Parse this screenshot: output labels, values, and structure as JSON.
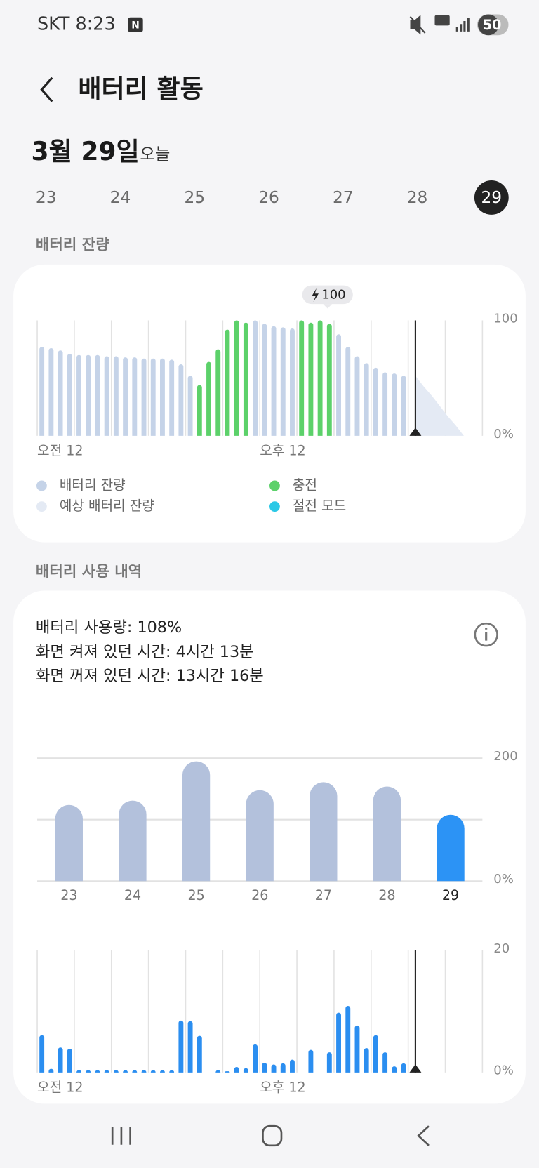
{
  "status_bar": {
    "carrier_time": "SKT 8:23",
    "notification_icon": "N",
    "battery": "50"
  },
  "header": {
    "title": "배터리 활동"
  },
  "date": {
    "label": "3월 29일",
    "relative": "오늘"
  },
  "day_tabs": {
    "days": [
      "23",
      "24",
      "25",
      "26",
      "27",
      "28",
      "29"
    ],
    "selected": "29"
  },
  "sections": [
    "배터리 잔량",
    "배터리 사용 내역"
  ],
  "usage_summary": [
    "배터리 사용량: 108%",
    "화면 켜져 있던 시간: 4시간 13분",
    "화면 꺼져 있던 시간: 13시간 16분"
  ],
  "chart_data": [
    {
      "type": "bar",
      "grid": "x",
      "annotation": "100",
      "categories": [
        "오전 12",
        null,
        null,
        null,
        null,
        null,
        null,
        null,
        null,
        null,
        null,
        null,
        null,
        null,
        null,
        null,
        null,
        null,
        null,
        null,
        null,
        null,
        null,
        null,
        "오후 12",
        null,
        null,
        null,
        null,
        null,
        null,
        null,
        null,
        null,
        null,
        null,
        null,
        null,
        null,
        null,
        null,
        null,
        null,
        null,
        null,
        null,
        null,
        null
      ],
      "series": [
        {
          "name": "배터리 잔량",
          "color": "#c5d3e8",
          "values": [
            77,
            76,
            74,
            71,
            70,
            70,
            70,
            69,
            69,
            68,
            68,
            67,
            67,
            67,
            66,
            62,
            52,
            null,
            null,
            null,
            null,
            null,
            null,
            100,
            97,
            95,
            94,
            93,
            null,
            null,
            null,
            null,
            88,
            77,
            69,
            63,
            59,
            55,
            54,
            52,
            null,
            null,
            null,
            null,
            null,
            null,
            null,
            null
          ]
        },
        {
          "name": "충전",
          "color": "#5cd16a",
          "values": [
            null,
            null,
            null,
            null,
            null,
            null,
            null,
            null,
            null,
            null,
            null,
            null,
            null,
            null,
            null,
            null,
            null,
            44,
            64,
            75,
            92,
            100,
            98,
            null,
            null,
            null,
            null,
            null,
            100,
            98,
            100,
            97,
            null,
            null,
            null,
            null,
            null,
            null,
            null,
            null,
            null,
            null,
            null,
            null,
            null,
            null,
            null,
            null
          ]
        },
        {
          "name": "예상 배터리 잔량",
          "color": "#e4eaf4",
          "type": "area",
          "values": [
            null,
            null,
            null,
            null,
            null,
            null,
            null,
            null,
            null,
            null,
            null,
            null,
            null,
            null,
            null,
            null,
            null,
            null,
            null,
            null,
            null,
            null,
            null,
            null,
            null,
            null,
            null,
            null,
            null,
            null,
            null,
            null,
            null,
            null,
            null,
            null,
            null,
            null,
            null,
            null,
            52,
            43,
            35,
            26,
            17,
            9,
            0,
            null
          ]
        },
        {
          "name": "절전 모드",
          "color": "#2bc8e6",
          "values": [
            null,
            null,
            null,
            null,
            null,
            null,
            null,
            null,
            null,
            null,
            null,
            null,
            null,
            null,
            null,
            null,
            null,
            null,
            null,
            null,
            null,
            null,
            null,
            null,
            null,
            null,
            null,
            null,
            null,
            null,
            null,
            null,
            null,
            null,
            null,
            null,
            null,
            null,
            null,
            null,
            null,
            null,
            null,
            null,
            null,
            null,
            null,
            null
          ]
        }
      ],
      "ylim": [
        0,
        100
      ],
      "yticks": [
        {
          "value": 0,
          "label": "0%"
        },
        100
      ]
    },
    {
      "type": "bar",
      "grid": "y",
      "categories": [
        "23",
        "24",
        "25",
        "26",
        "27",
        "28",
        "29"
      ],
      "values": [
        124,
        131,
        195,
        148,
        161,
        154,
        108
      ],
      "colors": [
        "#b3c1dc",
        "#b3c1dc",
        "#b3c1dc",
        "#b3c1dc",
        "#b3c1dc",
        "#b3c1dc",
        "#2c93f5"
      ],
      "ylim": [
        0,
        200
      ],
      "yticks": [
        {
          "value": 0,
          "label": "0%"
        },
        {
          "value": 100,
          "label": null
        },
        200
      ]
    },
    {
      "type": "bar",
      "grid": "x",
      "color": "#2b8ef0",
      "categories": [
        "오전 12",
        null,
        null,
        null,
        null,
        null,
        null,
        null,
        null,
        null,
        null,
        null,
        null,
        null,
        null,
        null,
        null,
        null,
        null,
        null,
        null,
        null,
        null,
        null,
        "오후 12",
        null,
        null,
        null,
        null,
        null,
        null,
        null,
        null,
        null,
        null,
        null,
        null,
        null,
        null,
        null,
        null,
        null,
        null,
        null,
        null,
        null,
        null,
        null
      ],
      "values": [
        6.1,
        0.6,
        4.1,
        3.9,
        0.4,
        0.4,
        0.4,
        0.4,
        0.4,
        0.4,
        0.4,
        0.4,
        0.4,
        0.4,
        0.4,
        8.5,
        8.4,
        6,
        null,
        0.4,
        0.2,
        0.9,
        0.7,
        4.6,
        1.6,
        1.3,
        1.5,
        2.1,
        null,
        3.7,
        null,
        3.3,
        9.8,
        10.9,
        7.7,
        4,
        6.1,
        3.3,
        1,
        1.5,
        null,
        null,
        null,
        null,
        null,
        null,
        null,
        null
      ],
      "ylim": [
        0,
        20
      ],
      "yticks": [
        {
          "value": 0,
          "label": "0%"
        },
        20
      ]
    }
  ]
}
